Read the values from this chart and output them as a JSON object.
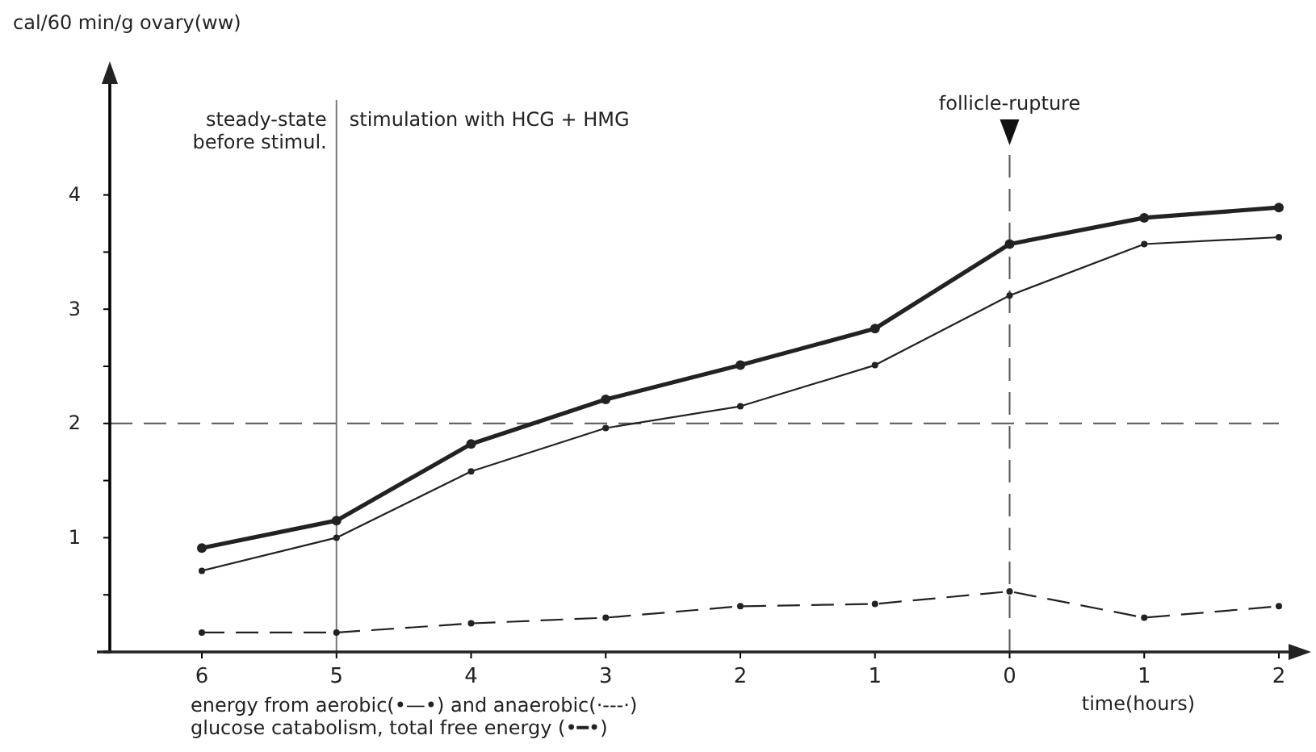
{
  "chart_data": {
    "type": "line",
    "ylabel": "cal/60 min/g ovary(ww)",
    "xlabel": "time(hours)",
    "categories": [
      "6",
      "5",
      "4",
      "3",
      "2",
      "1",
      "0",
      "1",
      "2"
    ],
    "series": [
      {
        "color": "#222222",
        "line_style": "solid",
        "values": [
          0.91,
          1.15,
          1.82,
          2.21,
          2.51,
          2.83,
          3.57,
          3.8,
          3.89
        ]
      },
      {
        "color": "#222222",
        "line_style": "solid",
        "values": [
          0.71,
          1.0,
          1.58,
          1.96,
          2.15,
          2.51,
          3.12,
          3.57,
          3.63
        ]
      },
      {
        "color": "#222222",
        "line_style": "dashed",
        "values": [
          0.17,
          0.17,
          0.25,
          0.3,
          0.4,
          0.42,
          0.53,
          0.3,
          0.4
        ]
      }
    ],
    "ylim": [
      0,
      5
    ],
    "yticks": [
      {
        "value": 0.5,
        "label": null
      },
      1,
      {
        "value": 1.5,
        "label": null
      },
      2,
      {
        "value": 2.5,
        "label": null
      },
      3,
      {
        "value": 3.5,
        "label": null
      },
      4
    ],
    "marker": "circle",
    "ref_lines": [
      {
        "axis": "y",
        "value": 2,
        "line_style": "dashed",
        "color": "#555555"
      },
      {
        "axis": "x",
        "value": "5",
        "line_style": "solid",
        "color": "#777777"
      },
      {
        "axis": "x",
        "value": "0",
        "line_style": "dashed",
        "color": "#555555",
        "label": "follicle-rupture"
      }
    ],
    "annotations": [
      "steady-state\nbefore stimul.",
      "stimulation with HCG + HMG",
      "energy from aerobic(•—•) and anaerobic(·---·)\nglucose catabolism,  total free energy (•━•)"
    ]
  }
}
